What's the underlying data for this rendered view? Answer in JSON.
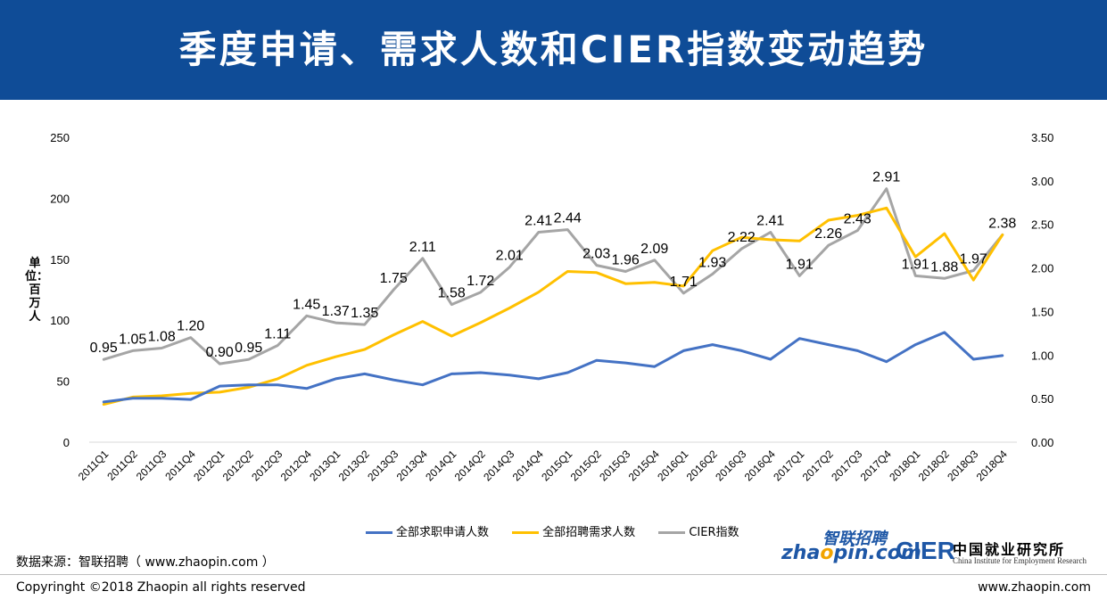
{
  "header": {
    "title": "季度申请、需求人数和CIER指数变动趋势"
  },
  "chart_data": {
    "type": "line",
    "title": "季度申请、需求人数和CIER指数变动趋势",
    "ylabel": "单位：百万人",
    "categories": [
      "2011Q1",
      "2011Q2",
      "2011Q3",
      "2011Q4",
      "2012Q1",
      "2012Q2",
      "2012Q3",
      "2012Q4",
      "2013Q1",
      "2013Q2",
      "2013Q3",
      "2013Q4",
      "2014Q1",
      "2014Q2",
      "2014Q3",
      "2014Q4",
      "2015Q1",
      "2015Q2",
      "2015Q3",
      "2015Q4",
      "2016Q1",
      "2016Q2",
      "2016Q3",
      "2016Q4",
      "2017Q1",
      "2017Q2",
      "2017Q3",
      "2017Q4",
      "2018Q1",
      "2018Q2",
      "2018Q3",
      "2018Q4"
    ],
    "ylim_left": [
      0,
      250
    ],
    "yticks_left": [
      "0",
      "50",
      "100",
      "150",
      "200",
      "250"
    ],
    "ylim_right": [
      0,
      3.5
    ],
    "yticks_right": [
      "0.00",
      "0.50",
      "1.00",
      "1.50",
      "2.00",
      "2.50",
      "3.00",
      "3.50"
    ],
    "grid": false,
    "legend_position": "bottom",
    "series": [
      {
        "name": "全部求职申请人数",
        "axis": "left",
        "color": "#4472c4",
        "values": [
          33,
          36,
          36,
          35,
          46,
          47,
          47,
          44,
          52,
          56,
          51,
          47,
          56,
          57,
          55,
          52,
          57,
          67,
          65,
          62,
          75,
          80,
          75,
          68,
          85,
          80,
          75,
          66,
          80,
          90,
          68,
          71
        ]
      },
      {
        "name": "全部招聘需求人数",
        "axis": "left",
        "color": "#ffc000",
        "values": [
          31,
          37,
          38,
          40,
          41,
          45,
          52,
          63,
          70,
          76,
          88,
          99,
          87,
          98,
          110,
          123,
          140,
          139,
          130,
          131,
          128,
          157,
          168,
          166,
          165,
          182,
          186,
          192,
          152,
          171,
          133,
          170
        ]
      },
      {
        "name": "CIER指数",
        "axis": "right",
        "color": "#a5a5a5",
        "values": [
          0.95,
          1.05,
          1.08,
          1.2,
          0.9,
          0.95,
          1.11,
          1.45,
          1.37,
          1.35,
          1.75,
          2.11,
          1.58,
          1.72,
          2.01,
          2.41,
          2.44,
          2.03,
          1.96,
          2.09,
          1.71,
          1.93,
          2.22,
          2.41,
          1.91,
          2.26,
          2.43,
          2.91,
          1.91,
          1.88,
          1.97,
          2.38
        ],
        "labels": [
          "0.95",
          "1.05",
          "1.08",
          "1.20",
          "0.90",
          "0.95",
          "1.11",
          "1.45",
          "1.37",
          "1.35",
          "1.75",
          "2.11",
          "1.58",
          "1.72",
          "2.01",
          "2.41",
          "2.44",
          "2.03",
          "1.96",
          "2.09",
          "1.71",
          "1.93",
          "2.22",
          "2.41",
          "1.91",
          "2.26",
          "2.43",
          "2.91",
          "1.91",
          "1.88",
          "1.97",
          "2.38"
        ]
      }
    ]
  },
  "source": "数据来源：智联招聘（ www.zhaopin.com ）",
  "footer": {
    "copyright": "Copyringht ©2018 Zhaopin all rights reserved",
    "site": "www.zhaopin.com"
  },
  "logos": {
    "zhaopin_top": "智联招聘",
    "zhaopin_main_a": "zha",
    "zhaopin_main_o": "o",
    "zhaopin_main_b": "pin.com",
    "cier": "CIER",
    "cier_cn": "中国就业研究所",
    "cier_en": "China Institute for Employment Research"
  }
}
